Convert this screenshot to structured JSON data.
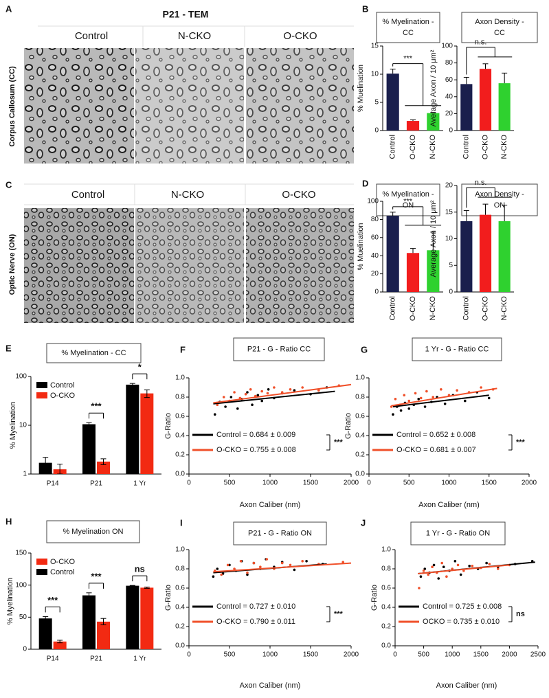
{
  "figure": {
    "panel_letters": [
      "A",
      "B",
      "C",
      "D",
      "E",
      "F",
      "G",
      "H",
      "I",
      "J"
    ],
    "tem_title": "P21 - TEM",
    "tem_rows": [
      {
        "label": "Corpus Callosum (CC)",
        "columns": [
          "Control",
          "N-CKO",
          "O-CKO"
        ]
      },
      {
        "label": "Optic Nerve (ON)",
        "columns": [
          "Control",
          "N-CKO",
          "O-CKO"
        ]
      }
    ]
  },
  "chart_data": [
    {
      "type": "bar",
      "title_lines": [
        "% Myelination -",
        "CC"
      ],
      "ylabel": "% Muelination",
      "categories": [
        "Control",
        "O-CKO",
        "N-CKO"
      ],
      "colors": [
        "#1a1f4d",
        "#f21d1d",
        "#2fd12f"
      ],
      "values": [
        10.1,
        1.7,
        3.1
      ],
      "errors": [
        0.8,
        0.2,
        0.1
      ],
      "ylim": [
        0,
        15
      ],
      "yticks": [
        0,
        5,
        10,
        15
      ],
      "annotation": "***"
    },
    {
      "type": "bar",
      "title_lines": [
        "Axon Density -",
        "CC"
      ],
      "ylabel": "Average Axon / 10 μm²",
      "categories": [
        "Control",
        "O-CKO",
        "N-CKO"
      ],
      "colors": [
        "#1a1f4d",
        "#f21d1d",
        "#2fd12f"
      ],
      "values": [
        55,
        73,
        56
      ],
      "errors": [
        8,
        6,
        12
      ],
      "ylim": [
        0,
        100
      ],
      "yticks": [
        0,
        20,
        40,
        60,
        80,
        100
      ],
      "annotation": "n.s."
    },
    {
      "type": "bar",
      "title_lines": [
        "% Myelination -",
        "ON"
      ],
      "ylabel": "% Muelination",
      "categories": [
        "Control",
        "O-CKO",
        "N-CKO"
      ],
      "colors": [
        "#1a1f4d",
        "#f21d1d",
        "#2fd12f"
      ],
      "values": [
        84,
        43,
        46
      ],
      "errors": [
        4,
        5,
        20
      ],
      "ylim": [
        0,
        100
      ],
      "yticks": [
        0,
        20,
        40,
        60,
        80,
        100
      ],
      "annotation": "***"
    },
    {
      "type": "bar",
      "title_lines": [
        "Axon Density -",
        "ON"
      ],
      "ylabel": "Average Axon / 10 μm²",
      "categories": [
        "Control",
        "O-CKO",
        "N-CKO"
      ],
      "colors": [
        "#1a1f4d",
        "#f21d1d",
        "#2fd12f"
      ],
      "values": [
        13.3,
        14.5,
        13.3
      ],
      "errors": [
        2,
        2,
        3
      ],
      "ylim": [
        0,
        20
      ],
      "yticks": [
        0,
        5,
        10,
        15,
        20
      ],
      "annotation": "n.s."
    },
    {
      "type": "bar",
      "title": "% Myelination  - CC",
      "ylabel": "% Myelination",
      "categories": [
        "P14",
        "P21",
        "1 Yr"
      ],
      "log_scale": true,
      "series": [
        {
          "name": "Control",
          "color": "#000000",
          "values": [
            1.7,
            10.5,
            68
          ],
          "errors": [
            0.5,
            0.8,
            4
          ]
        },
        {
          "name": "O-CKO",
          "color": "#f22a12",
          "values": [
            1.25,
            1.8,
            45
          ],
          "errors": [
            0.35,
            0.25,
            8
          ]
        }
      ],
      "ylim": [
        1,
        100
      ],
      "yticks": [
        1,
        10,
        100
      ],
      "annotations": [
        null,
        "***",
        "*"
      ]
    },
    {
      "type": "scatter",
      "title": "P21 - G - Ratio CC",
      "xlabel": "Axon Caliber (nm)",
      "ylabel": "G-Ratio",
      "xlim": [
        0,
        2000
      ],
      "xticks": [
        0,
        500,
        1000,
        1500,
        2000
      ],
      "ylim": [
        0,
        1
      ],
      "yticks": [
        {
          "value": 0,
          "label": "0.0"
        },
        0.2,
        0.4,
        0.6,
        0.8,
        {
          "value": 1,
          "label": "1.0"
        }
      ],
      "annotation": "***",
      "series": [
        {
          "name": "Control = 0.684 ± 0.009",
          "color": "#000000",
          "x": [
            320,
            380,
            450,
            520,
            600,
            650,
            720,
            780,
            850,
            900,
            980,
            1050,
            1150,
            1300,
            1500,
            1700
          ],
          "y": [
            0.62,
            0.75,
            0.7,
            0.8,
            0.68,
            0.78,
            0.85,
            0.72,
            0.82,
            0.76,
            0.88,
            0.79,
            0.84,
            0.87,
            0.83,
            0.9
          ],
          "fit_x": [
            300,
            1800
          ],
          "fit_y": [
            0.73,
            0.86
          ]
        },
        {
          "name": "O-CKO = 0.755 ± 0.008",
          "color": "#f0502a",
          "x": [
            350,
            430,
            500,
            560,
            630,
            700,
            760,
            820,
            900,
            970,
            1050,
            1150,
            1250,
            1400,
            1600,
            1850
          ],
          "y": [
            0.72,
            0.8,
            0.76,
            0.85,
            0.79,
            0.83,
            0.88,
            0.81,
            0.86,
            0.84,
            0.9,
            0.85,
            0.88,
            0.9,
            0.87,
            0.92
          ],
          "fit_x": [
            300,
            2000
          ],
          "fit_y": [
            0.74,
            0.93
          ]
        }
      ]
    },
    {
      "type": "scatter",
      "title": "1 Yr - G - Ratio CC",
      "xlabel": "Axon Caliber (nm)",
      "ylabel": "G-Ratio",
      "xlim": [
        0,
        2000
      ],
      "xticks": [
        0,
        500,
        1000,
        1500,
        2000
      ],
      "ylim": [
        0,
        1
      ],
      "yticks": [
        {
          "value": 0,
          "label": "0.0"
        },
        0.2,
        0.4,
        0.6,
        0.8,
        {
          "value": 1,
          "label": "1.0"
        }
      ],
      "annotation": "***",
      "series": [
        {
          "name": "Control = 0.652 ± 0.008",
          "color": "#000000",
          "x": [
            300,
            350,
            400,
            450,
            500,
            560,
            620,
            700,
            780,
            850,
            950,
            1050,
            1200,
            1350,
            1500
          ],
          "y": [
            0.62,
            0.7,
            0.66,
            0.74,
            0.68,
            0.72,
            0.78,
            0.7,
            0.75,
            0.8,
            0.73,
            0.82,
            0.76,
            0.85,
            0.79
          ],
          "fit_x": [
            300,
            1500
          ],
          "fit_y": [
            0.7,
            0.82
          ]
        },
        {
          "name": "O-CKO = 0.681 ± 0.007",
          "color": "#f0502a",
          "x": [
            280,
            330,
            390,
            440,
            500,
            580,
            650,
            720,
            800,
            900,
            1000,
            1100,
            1250,
            1400,
            1550
          ],
          "y": [
            0.7,
            0.78,
            0.72,
            0.82,
            0.76,
            0.84,
            0.79,
            0.86,
            0.8,
            0.88,
            0.82,
            0.87,
            0.85,
            0.9,
            0.88
          ],
          "fit_x": [
            280,
            1600
          ],
          "fit_y": [
            0.71,
            0.89
          ]
        }
      ]
    },
    {
      "type": "bar",
      "title": "% Myelination ON",
      "ylabel": "% Myelination",
      "categories": [
        "P14",
        "P21",
        "1 Yr"
      ],
      "series": [
        {
          "name": "O-CKO",
          "color": "#f22a12",
          "values": [
            12,
            43,
            96
          ],
          "errors": [
            2,
            5,
            1
          ]
        },
        {
          "name": "Control",
          "color": "#000000",
          "values": [
            48,
            84,
            99
          ],
          "errors": [
            3,
            4,
            0.5
          ]
        }
      ],
      "ylim": [
        0,
        150
      ],
      "yticks": [
        0,
        50,
        100,
        150
      ],
      "annotations": [
        "***",
        "***",
        "ns"
      ]
    },
    {
      "type": "scatter",
      "title": "P21 - G - Ratio ON",
      "xlabel": "Axon Caliber (nm)",
      "ylabel": "G-Ratio",
      "xlim": [
        0,
        2000
      ],
      "xticks": [
        0,
        500,
        1000,
        1500,
        2000
      ],
      "ylim": [
        0,
        1
      ],
      "yticks": [
        {
          "value": 0,
          "label": "0.0"
        },
        0.2,
        0.4,
        0.6,
        0.8,
        {
          "value": 1,
          "label": "1.0"
        }
      ],
      "annotation": "***",
      "series": [
        {
          "name": "Control = 0.727 ± 0.010",
          "color": "#000000",
          "x": [
            300,
            350,
            420,
            500,
            580,
            650,
            720,
            800,
            880,
            950,
            1050,
            1150,
            1300,
            1450,
            1650
          ],
          "y": [
            0.72,
            0.8,
            0.75,
            0.84,
            0.78,
            0.88,
            0.74,
            0.86,
            0.8,
            0.9,
            0.82,
            0.87,
            0.79,
            0.88,
            0.85
          ],
          "fit_x": [
            300,
            1700
          ],
          "fit_y": [
            0.76,
            0.85
          ]
        },
        {
          "name": "O-CKO = 0.790 ± 0.011",
          "color": "#f0502a",
          "x": [
            320,
            400,
            480,
            560,
            640,
            720,
            800,
            880,
            960,
            1050,
            1150,
            1250,
            1400,
            1600,
            1900
          ],
          "y": [
            0.78,
            0.74,
            0.84,
            0.8,
            0.88,
            0.76,
            0.86,
            0.82,
            0.9,
            0.8,
            0.86,
            0.84,
            0.88,
            0.85,
            0.87
          ],
          "fit_x": [
            300,
            2000
          ],
          "fit_y": [
            0.77,
            0.86
          ]
        }
      ]
    },
    {
      "type": "scatter",
      "title": "1 Yr - G - Ratio ON",
      "xlabel": "Axon Caliber (nm)",
      "ylabel": "G-Ratio",
      "xlim": [
        0,
        2500
      ],
      "xticks": [
        0,
        500,
        1000,
        1500,
        2000,
        2500
      ],
      "ylim": [
        0,
        1
      ],
      "yticks": [
        {
          "value": 0,
          "label": "0.0"
        },
        0.2,
        0.4,
        0.6,
        0.8,
        {
          "value": 1,
          "label": "1.0"
        }
      ],
      "annotation": "ns",
      "series": [
        {
          "name": "Control = 0.725 ± 0.008",
          "color": "#000000",
          "x": [
            450,
            520,
            600,
            680,
            760,
            850,
            950,
            1050,
            1150,
            1300,
            1450,
            1600,
            1800,
            2100,
            2400
          ],
          "y": [
            0.72,
            0.8,
            0.76,
            0.84,
            0.7,
            0.82,
            0.78,
            0.88,
            0.74,
            0.83,
            0.8,
            0.86,
            0.82,
            0.85,
            0.88
          ],
          "fit_x": [
            400,
            2450
          ],
          "fit_y": [
            0.75,
            0.87
          ]
        },
        {
          "name": "OCKO = 0.735 ± 0.010",
          "color": "#f0502a",
          "x": [
            420,
            500,
            580,
            650,
            730,
            820,
            900,
            1000,
            1100,
            1200,
            1350,
            1500,
            1650,
            1800,
            2000
          ],
          "y": [
            0.6,
            0.78,
            0.74,
            0.82,
            0.76,
            0.86,
            0.72,
            0.8,
            0.84,
            0.78,
            0.83,
            0.81,
            0.85,
            0.8,
            0.84
          ],
          "fit_x": [
            400,
            2000
          ],
          "fit_y": [
            0.75,
            0.84
          ]
        }
      ]
    }
  ]
}
